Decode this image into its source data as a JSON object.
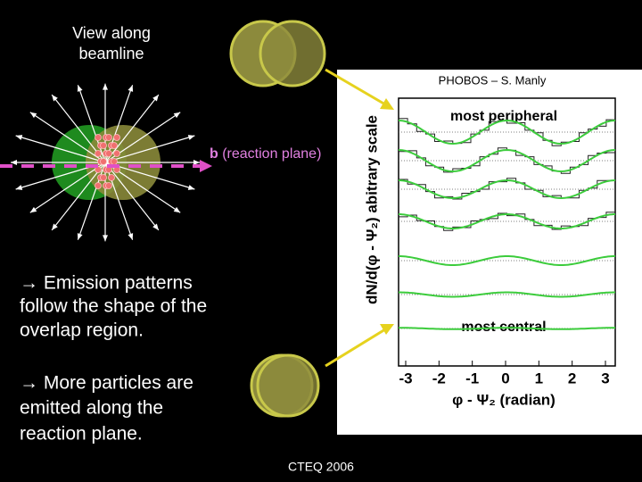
{
  "header": {
    "view_label": [
      "View along",
      "beamline"
    ],
    "credit": "PHOBOS – S. Manly",
    "reaction_plane": {
      "symbol": "b",
      "text": " (reaction plane)"
    }
  },
  "bullets": [
    [
      "→ Emission patterns",
      "follow the shape of the",
      "overlap region."
    ],
    [
      "→ More particles are",
      "emitted along the",
      "reaction plane."
    ]
  ],
  "figure": {
    "y_axis_label": "dN/d(φ - Ψ₂) abitrary scale",
    "x_axis_label": "φ - Ψ₂ (radian)",
    "top_label": "most peripheral",
    "bottom_label": "most central",
    "x_tick_labels": [
      "-3",
      "-2",
      "-1",
      "0",
      "1",
      "2",
      "3"
    ]
  },
  "footer": "CTEQ 2006"
}
